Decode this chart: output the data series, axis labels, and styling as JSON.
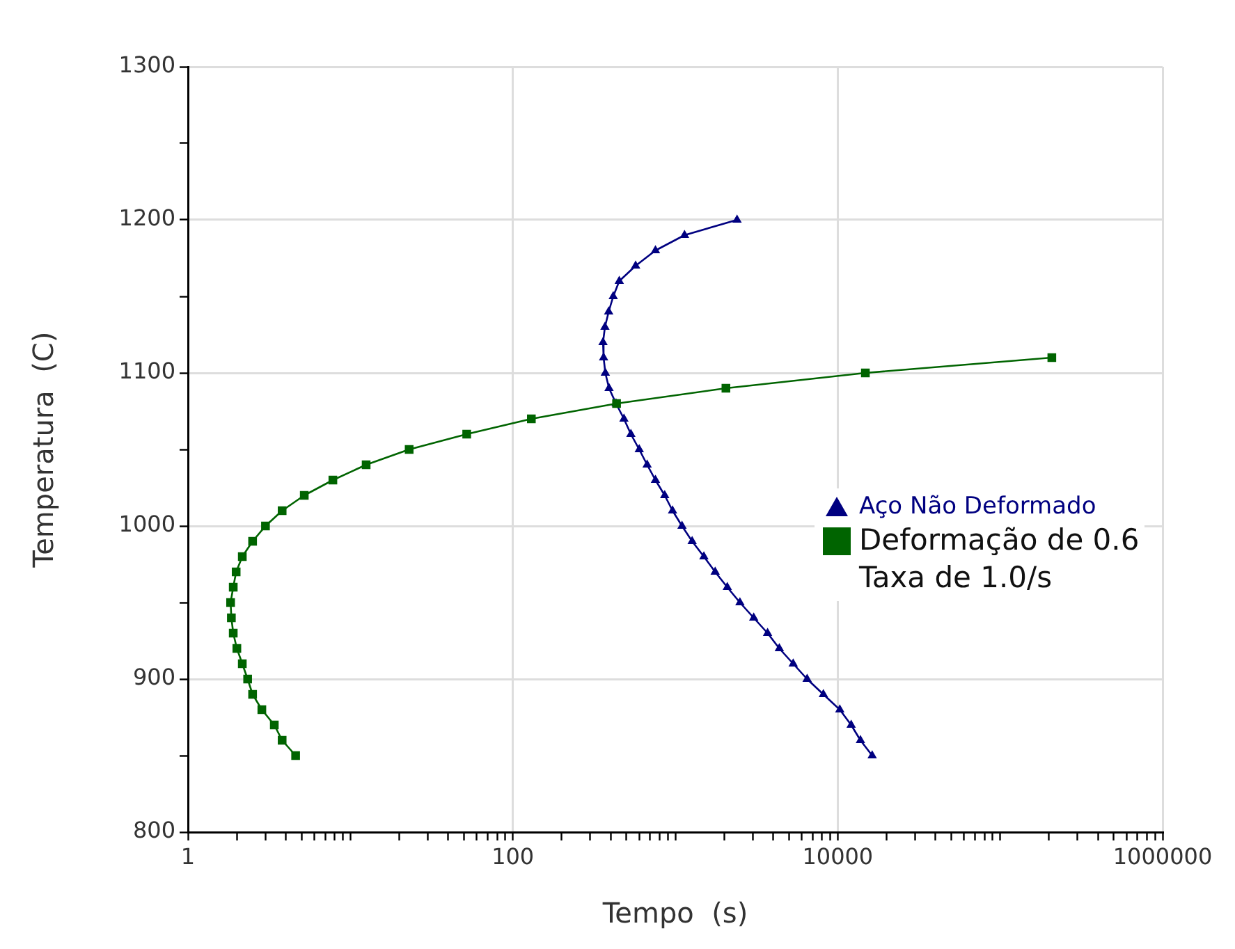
{
  "chart_data": {
    "type": "line",
    "xlabel": "Tempo  (s)",
    "ylabel": "Temperatura  (C)",
    "log": "x",
    "grid": true,
    "legend": "right",
    "xlim": [
      1,
      1000000
    ],
    "ylim": [
      800,
      1300
    ],
    "xticks": [
      1,
      {
        "value": 2,
        "label": null
      },
      {
        "value": 3,
        "label": null
      },
      {
        "value": 4,
        "label": null
      },
      {
        "value": 5,
        "label": null
      },
      {
        "value": 6,
        "label": null
      },
      {
        "value": 7,
        "label": null
      },
      {
        "value": 8,
        "label": null
      },
      {
        "value": 9,
        "label": null
      },
      {
        "value": 10,
        "label": null
      },
      {
        "value": 20,
        "label": null
      },
      {
        "value": 30,
        "label": null
      },
      {
        "value": 40,
        "label": null
      },
      {
        "value": 50,
        "label": null
      },
      {
        "value": 60,
        "label": null
      },
      {
        "value": 70,
        "label": null
      },
      {
        "value": 80,
        "label": null
      },
      {
        "value": 90,
        "label": null
      },
      100,
      {
        "value": 200,
        "label": null
      },
      {
        "value": 300,
        "label": null
      },
      {
        "value": 400,
        "label": null
      },
      {
        "value": 500,
        "label": null
      },
      {
        "value": 600,
        "label": null
      },
      {
        "value": 700,
        "label": null
      },
      {
        "value": 800,
        "label": null
      },
      {
        "value": 900,
        "label": null
      },
      {
        "value": 1000,
        "label": null
      },
      {
        "value": 2000,
        "label": null
      },
      {
        "value": 3000,
        "label": null
      },
      {
        "value": 4000,
        "label": null
      },
      {
        "value": 5000,
        "label": null
      },
      {
        "value": 6000,
        "label": null
      },
      {
        "value": 7000,
        "label": null
      },
      {
        "value": 8000,
        "label": null
      },
      {
        "value": 9000,
        "label": null
      },
      10000,
      {
        "value": 20000,
        "label": null
      },
      {
        "value": 30000,
        "label": null
      },
      {
        "value": 40000,
        "label": null
      },
      {
        "value": 50000,
        "label": null
      },
      {
        "value": 60000,
        "label": null
      },
      {
        "value": 70000,
        "label": null
      },
      {
        "value": 80000,
        "label": null
      },
      {
        "value": 90000,
        "label": null
      },
      {
        "value": 100000,
        "label": null
      },
      {
        "value": 200000,
        "label": null
      },
      {
        "value": 300000,
        "label": null
      },
      {
        "value": 400000,
        "label": null
      },
      {
        "value": 500000,
        "label": null
      },
      {
        "value": 600000,
        "label": null
      },
      {
        "value": 700000,
        "label": null
      },
      {
        "value": 800000,
        "label": null
      },
      {
        "value": 900000,
        "label": null
      },
      1000000
    ],
    "yticks": [
      800,
      {
        "value": 850,
        "label": null
      },
      900,
      {
        "value": 950,
        "label": null
      },
      1000,
      {
        "value": 1050,
        "label": null
      },
      1100,
      {
        "value": 1150,
        "label": null
      },
      1200,
      {
        "value": 1250,
        "label": null
      },
      1300
    ],
    "series": [
      {
        "name": "Aço Não Deformado",
        "color": "#000080",
        "marker": "triangle",
        "x": [
          2400,
          1140,
          755,
          570,
          452,
          415,
          389,
          369,
          359,
          362,
          371,
          391,
          432,
          483,
          533,
          600,
          671,
          755,
          861,
          962,
          1100,
          1270,
          1500,
          1760,
          2090,
          2500,
          3040,
          3700,
          4370,
          5320,
          6480,
          8160,
          10300,
          12100,
          13800,
          16300
        ],
        "values": [
          1200,
          1190,
          1180,
          1170,
          1160,
          1150,
          1140,
          1130,
          1120,
          1110,
          1100,
          1090,
          1080,
          1070,
          1060,
          1050,
          1040,
          1030,
          1020,
          1010,
          1000,
          990,
          980,
          970,
          960,
          950,
          940,
          930,
          920,
          910,
          900,
          890,
          880,
          870,
          860,
          850
        ]
      },
      {
        "name": "Deformação de 0.6\nTaxa de 1.0/s",
        "color": "#006400",
        "marker": "square",
        "x": [
          4.6,
          3.8,
          3.4,
          2.85,
          2.5,
          2.33,
          2.16,
          2.0,
          1.9,
          1.85,
          1.83,
          1.9,
          1.98,
          2.16,
          2.5,
          3.0,
          3.8,
          5.2,
          7.8,
          12.5,
          23,
          52,
          130,
          435,
          2050,
          14800,
          208000
        ],
        "values": [
          850,
          860,
          870,
          880,
          890,
          900,
          910,
          920,
          930,
          940,
          950,
          960,
          970,
          980,
          990,
          1000,
          1010,
          1020,
          1030,
          1040,
          1050,
          1060,
          1070,
          1080,
          1090,
          1100,
          1110
        ]
      }
    ]
  }
}
